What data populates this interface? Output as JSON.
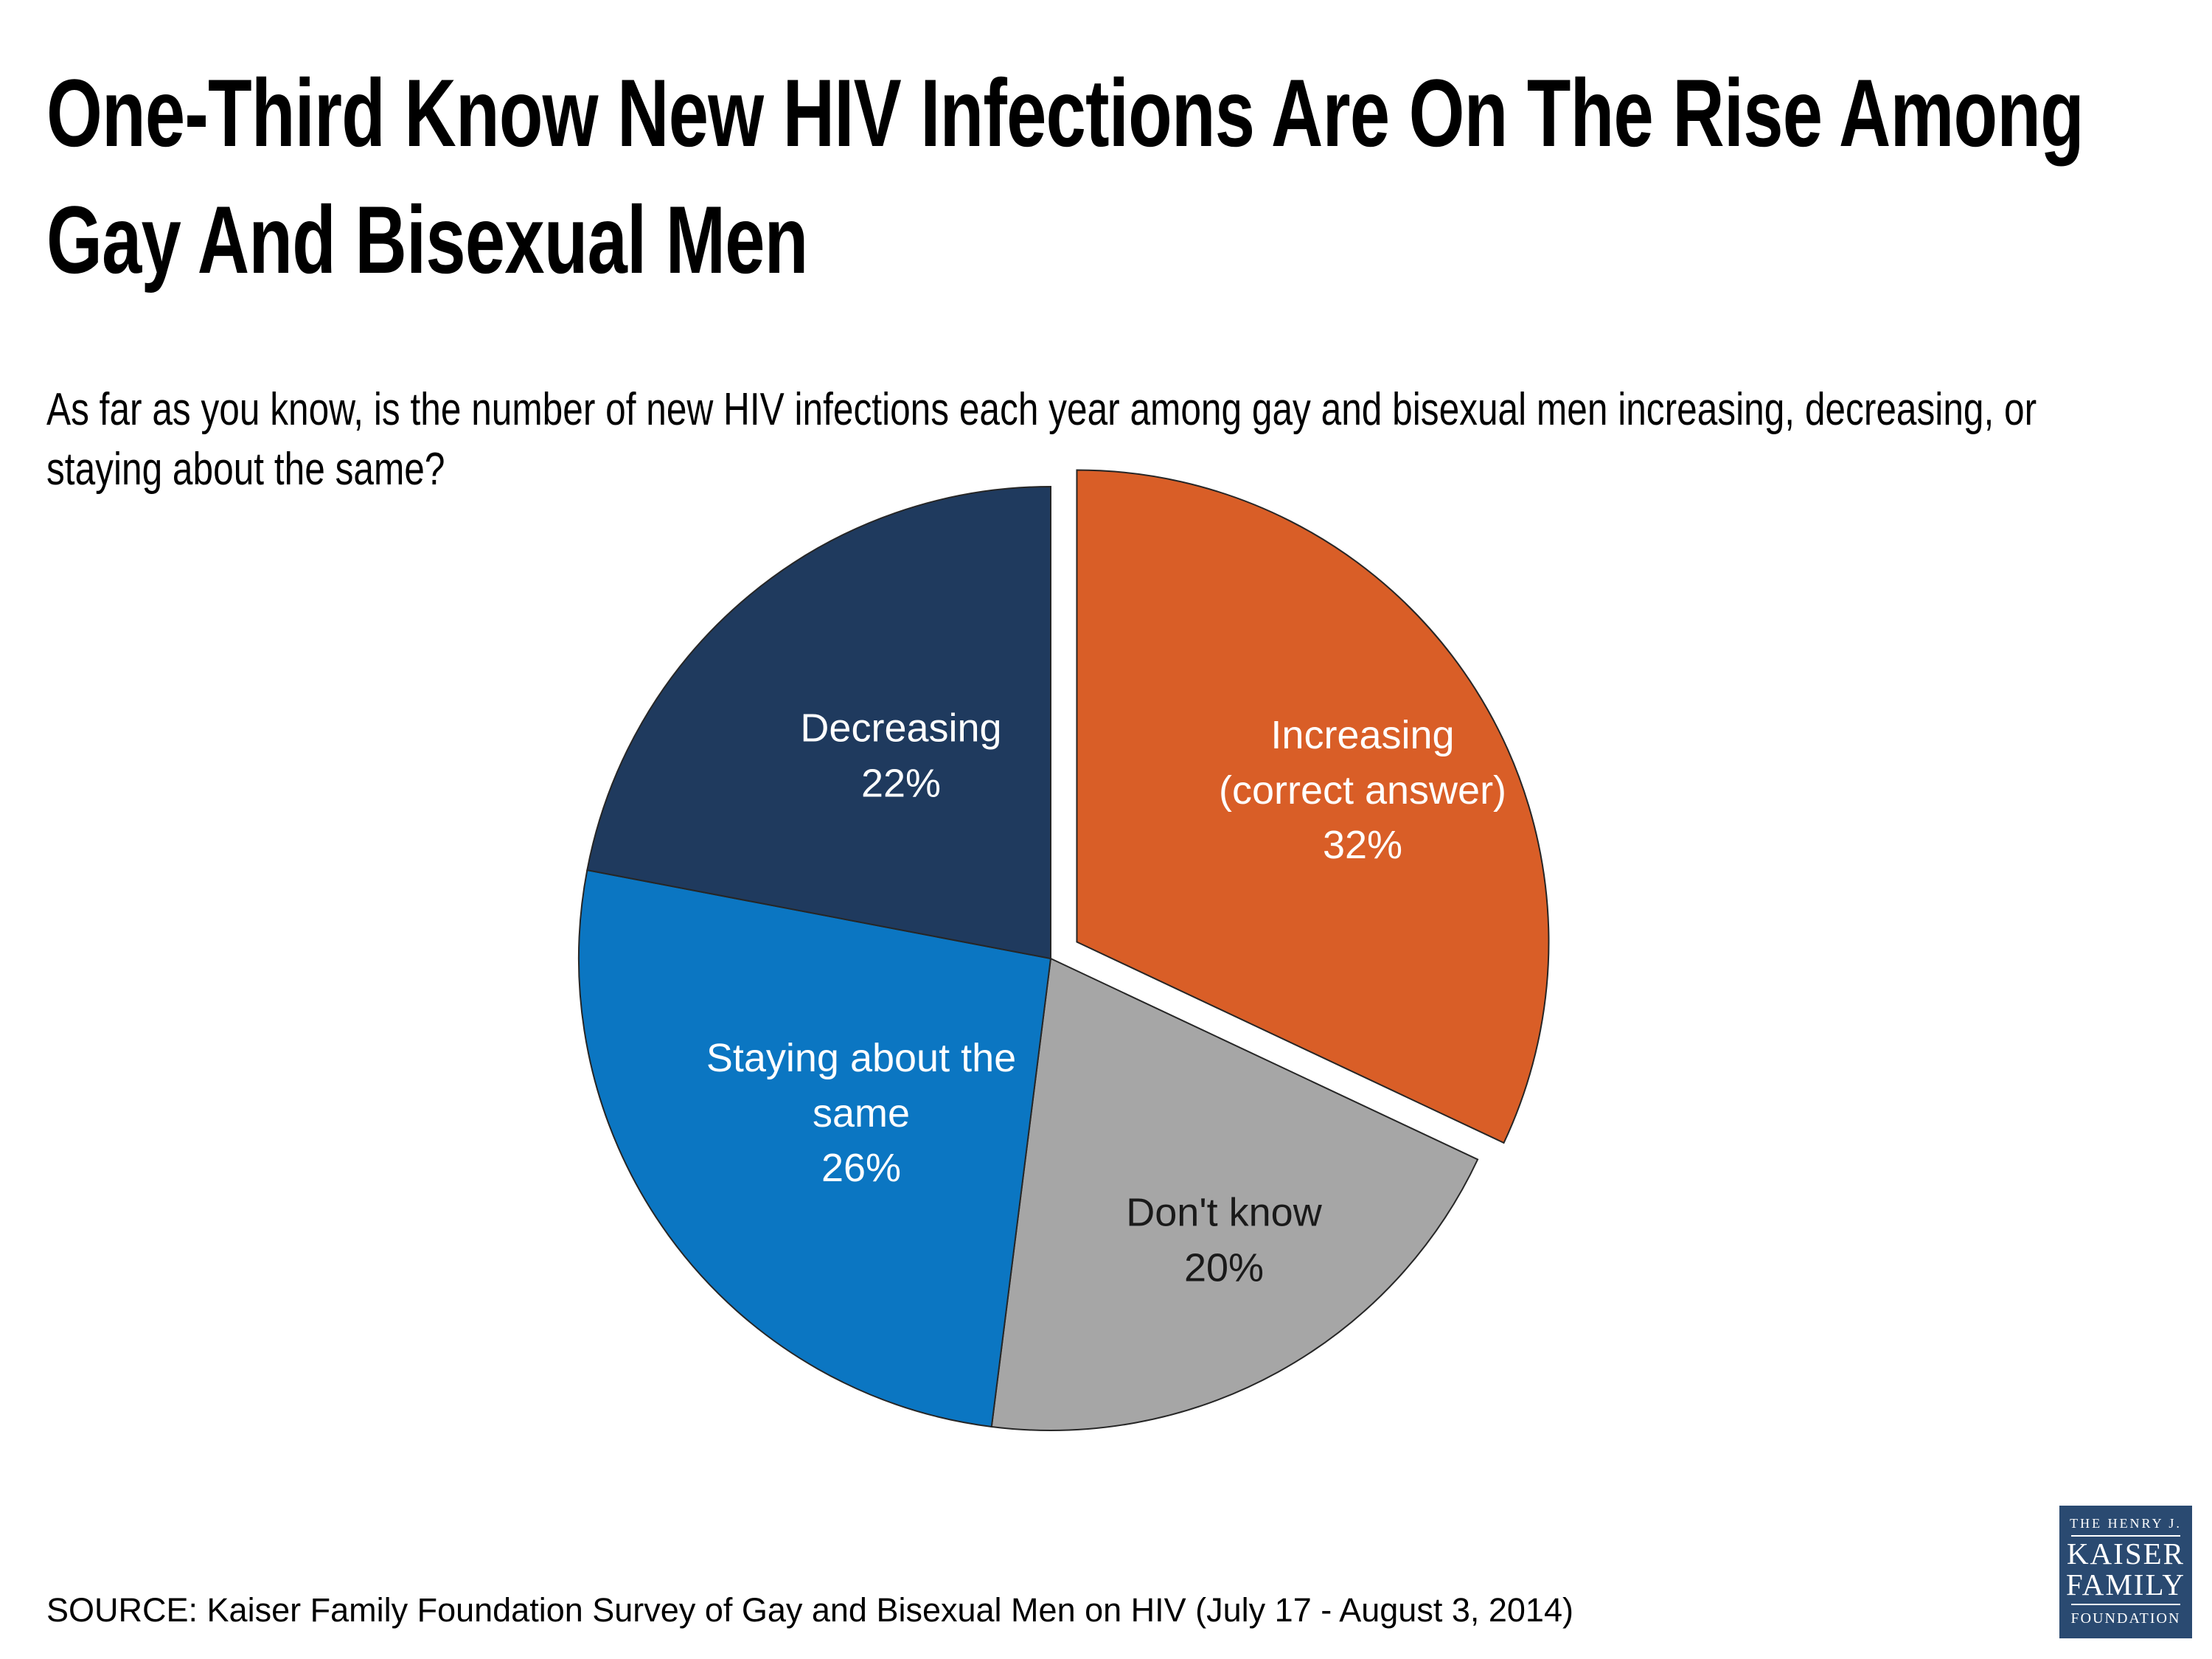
{
  "title": "One-Third Know New HIV Infections Are On The Rise Among\nGay And Bisexual Men",
  "subtitle": "As far as you know, is the number of new HIV infections each year among gay and bisexual men increasing, decreasing, or\nstaying about the same?",
  "source": "SOURCE: Kaiser Family Foundation Survey of Gay and Bisexual Men on HIV (July 17 - August 3, 2014)",
  "logo": {
    "line1": "THE HENRY J.",
    "line2": "KAISER",
    "line3": "FAMILY",
    "line4": "FOUNDATION",
    "bg_color": "#2A4A71"
  },
  "chart_data": {
    "type": "pie",
    "title": "",
    "categories": [
      "Increasing (correct answer)",
      "Don't know",
      "Staying about the same",
      "Decreasing"
    ],
    "values": [
      32,
      20,
      26,
      22
    ],
    "units": "percent",
    "start_angle_deg": 0,
    "direction": "clockwise",
    "legend": "none",
    "slices": [
      {
        "name": "Increasing (correct answer)",
        "value": 32,
        "color": "#D95E27",
        "label_text": "Increasing\n(correct answer)\n32%",
        "label_color": "#FFFFFF",
        "exploded": true
      },
      {
        "name": "Don't know",
        "value": 20,
        "color": "#A6A6A6",
        "label_text": "Don't know\n20%",
        "label_color": "#1A1A1A",
        "exploded": false
      },
      {
        "name": "Staying about the same",
        "value": 26,
        "color": "#0B76C2",
        "label_text": "Staying about the\nsame\n26%",
        "label_color": "#FFFFFF",
        "exploded": false
      },
      {
        "name": "Decreasing",
        "value": 22,
        "color": "#1F3A5E",
        "label_text": "Decreasing\n22%",
        "label_color": "#FFFFFF",
        "exploded": false
      }
    ]
  }
}
